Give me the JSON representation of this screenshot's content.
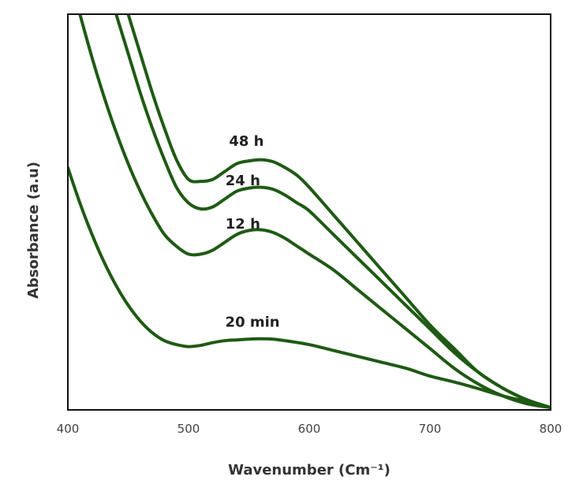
{
  "chart_data": {
    "type": "line",
    "xlabel": "Wavenumber (Cm⁻¹)",
    "ylabel": "Absorbance (a.u)",
    "xlim": [
      400,
      800
    ],
    "ylim": [
      0,
      1
    ],
    "x_ticks": [
      "400",
      "500",
      "600",
      "700",
      "800"
    ],
    "grid": false,
    "legend": "none",
    "line_color": "#1f5a14",
    "series": [
      {
        "name": "48 h",
        "x": [
          450,
          460,
          470,
          480,
          490,
          500,
          510,
          520,
          530,
          540,
          550,
          560,
          570,
          580,
          590,
          600,
          620,
          640,
          660,
          680,
          700,
          720,
          740,
          760,
          780,
          800
        ],
        "y": [
          1.0,
          0.9,
          0.8,
          0.71,
          0.63,
          0.58,
          0.575,
          0.58,
          0.6,
          0.62,
          0.627,
          0.63,
          0.625,
          0.61,
          0.59,
          0.56,
          0.49,
          0.42,
          0.35,
          0.28,
          0.21,
          0.15,
          0.09,
          0.05,
          0.02,
          0.0
        ]
      },
      {
        "name": "24 h",
        "x": [
          440,
          450,
          460,
          470,
          480,
          490,
          500,
          510,
          520,
          530,
          540,
          550,
          560,
          570,
          580,
          590,
          600,
          620,
          640,
          660,
          680,
          700,
          720,
          740,
          760,
          780,
          800
        ],
        "y": [
          1.0,
          0.9,
          0.8,
          0.71,
          0.63,
          0.56,
          0.52,
          0.505,
          0.51,
          0.53,
          0.55,
          0.558,
          0.56,
          0.555,
          0.54,
          0.52,
          0.5,
          0.44,
          0.38,
          0.32,
          0.26,
          0.2,
          0.14,
          0.09,
          0.05,
          0.02,
          0.0
        ]
      },
      {
        "name": "12 h",
        "x": [
          410,
          420,
          430,
          440,
          450,
          460,
          470,
          480,
          490,
          500,
          510,
          520,
          530,
          540,
          550,
          560,
          570,
          580,
          590,
          600,
          620,
          640,
          660,
          680,
          700,
          720,
          740,
          760,
          780,
          800
        ],
        "y": [
          1.0,
          0.89,
          0.79,
          0.7,
          0.62,
          0.55,
          0.49,
          0.44,
          0.41,
          0.39,
          0.39,
          0.4,
          0.42,
          0.44,
          0.45,
          0.452,
          0.445,
          0.43,
          0.41,
          0.39,
          0.35,
          0.3,
          0.25,
          0.2,
          0.15,
          0.1,
          0.06,
          0.03,
          0.01,
          0.0
        ]
      },
      {
        "name": "20 min",
        "x": [
          400,
          410,
          420,
          430,
          440,
          450,
          460,
          470,
          480,
          490,
          500,
          510,
          520,
          530,
          540,
          550,
          560,
          570,
          580,
          600,
          620,
          640,
          660,
          680,
          700,
          720,
          740,
          760,
          780,
          800
        ],
        "y": [
          0.61,
          0.52,
          0.44,
          0.37,
          0.31,
          0.26,
          0.22,
          0.19,
          0.17,
          0.16,
          0.155,
          0.158,
          0.165,
          0.17,
          0.172,
          0.174,
          0.175,
          0.174,
          0.17,
          0.16,
          0.145,
          0.13,
          0.115,
          0.1,
          0.08,
          0.065,
          0.048,
          0.03,
          0.015,
          0.0
        ]
      }
    ],
    "annotations": [
      {
        "text": "48 h",
        "x": 548,
        "y": 0.665
      },
      {
        "text": "24 h",
        "x": 545,
        "y": 0.565
      },
      {
        "text": "12 h",
        "x": 545,
        "y": 0.455
      },
      {
        "text": "20 min",
        "x": 553,
        "y": 0.205
      }
    ]
  }
}
